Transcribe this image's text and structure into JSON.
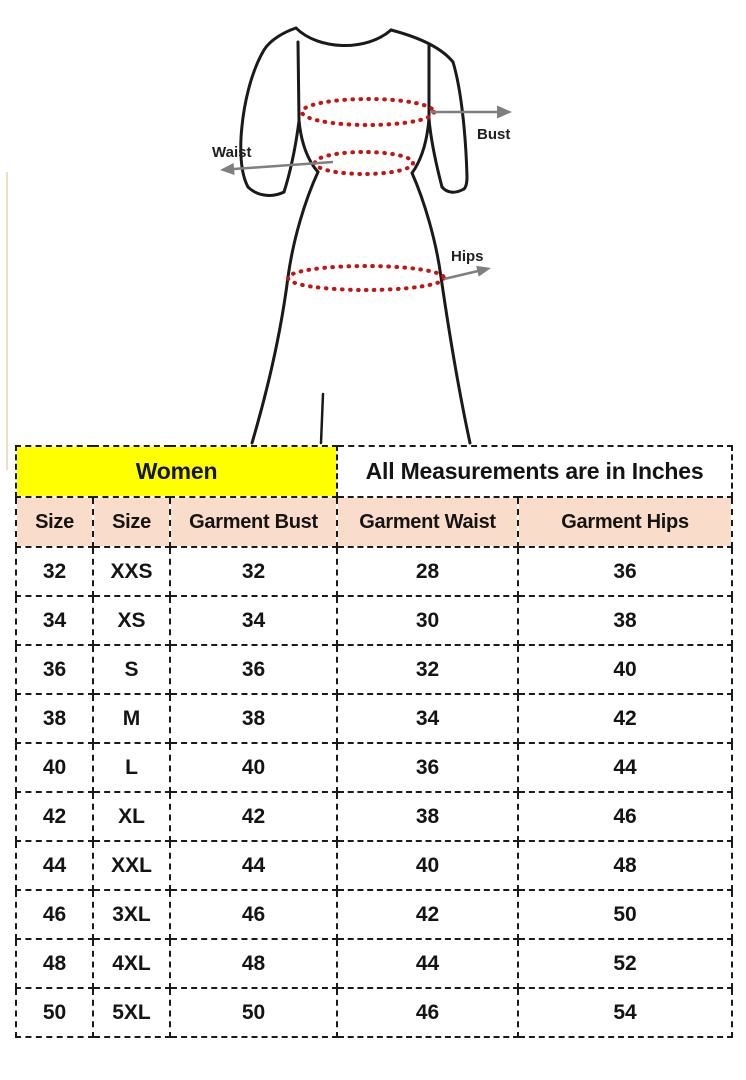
{
  "diagram": {
    "bust_label": "Bust",
    "waist_label": "Waist",
    "hips_label": "Hips",
    "colors": {
      "outline": "#1a1a1a",
      "measure_dots": "#c41414",
      "arrow": "#7f7f7f"
    }
  },
  "chart_data": {
    "type": "table",
    "group_headers": [
      {
        "label": "Women",
        "colspan": 3,
        "bg": "#ffff00"
      },
      {
        "label": "All Measurements are in Inches",
        "colspan": 2,
        "bg": "#ffffff"
      }
    ],
    "columns": [
      "Size",
      "Size",
      "Garment Bust",
      "Garment Waist",
      "Garment Hips"
    ],
    "rows": [
      [
        "32",
        "XXS",
        "32",
        "28",
        "36"
      ],
      [
        "34",
        "XS",
        "34",
        "30",
        "38"
      ],
      [
        "36",
        "S",
        "36",
        "32",
        "40"
      ],
      [
        "38",
        "M",
        "38",
        "34",
        "42"
      ],
      [
        "40",
        "L",
        "40",
        "36",
        "44"
      ],
      [
        "42",
        "XL",
        "42",
        "38",
        "46"
      ],
      [
        "44",
        "XXL",
        "44",
        "40",
        "48"
      ],
      [
        "46",
        "3XL",
        "46",
        "42",
        "50"
      ],
      [
        "48",
        "4XL",
        "48",
        "44",
        "52"
      ],
      [
        "50",
        "5XL",
        "50",
        "46",
        "54"
      ]
    ],
    "colors": {
      "women_bg": "#ffff00",
      "header_bg": "#fadcca",
      "border": "#1a1a1a"
    }
  }
}
